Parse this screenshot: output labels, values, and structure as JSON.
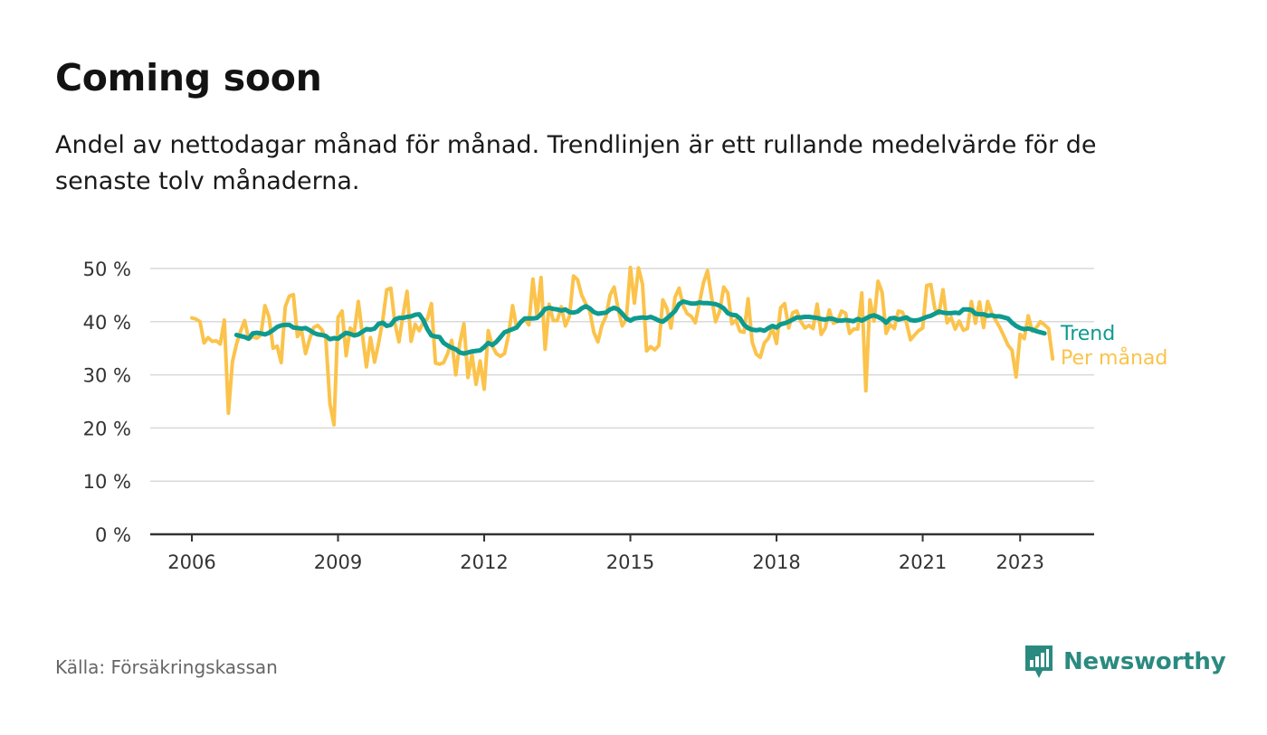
{
  "header": {
    "title": "Coming soon",
    "subtitle": "Andel av nettodagar månad för månad. Trendlinjen är ett rullande medelvärde för de senaste tolv månaderna."
  },
  "footer": {
    "source": "Källa: Försäkringskassan",
    "brand": "Newsworthy",
    "brand_icon": "bar-chart-speech-bubble-icon"
  },
  "colors": {
    "trend": "#0e9a8f",
    "monthly": "#fbc34b",
    "grid": "#d9d9d9",
    "axis": "#333333",
    "brand": "#2b8a80"
  },
  "chart_data": {
    "type": "line",
    "x_start": "2006-01",
    "x_step": "month",
    "ylim": [
      0,
      50
    ],
    "y_ticks": [
      0,
      10,
      20,
      30,
      40,
      50
    ],
    "y_tick_labels": [
      "0 %",
      "10 %",
      "20 %",
      "30 %",
      "40 %",
      "50 %"
    ],
    "x_ticks": [
      2006,
      2009,
      2012,
      2015,
      2018,
      2021,
      2023
    ],
    "x_tick_labels": [
      "2006",
      "2009",
      "2012",
      "2015",
      "2018",
      "2021",
      "2023"
    ],
    "grid": true,
    "legend": "inline-right",
    "series": [
      {
        "name": "Trend",
        "start": "2006-12",
        "values": [
          37.5,
          37.3,
          37.1,
          36.8,
          37.8,
          37.9,
          37.8,
          37.6,
          37.9,
          38.4,
          39.0,
          39.3,
          39.4,
          39.4,
          38.9,
          38.8,
          38.7,
          38.8,
          38.4,
          37.9,
          37.6,
          37.5,
          37.3,
          36.7,
          36.9,
          36.8,
          37.4,
          37.9,
          37.7,
          37.4,
          37.6,
          38.1,
          38.6,
          38.5,
          38.7,
          39.6,
          39.8,
          39.2,
          39.4,
          40.4,
          40.7,
          40.7,
          40.9,
          41.0,
          41.3,
          41.4,
          40.3,
          38.6,
          37.4,
          37.2,
          37.1,
          36.0,
          35.5,
          35.1,
          34.8,
          34.2,
          34.0,
          34.2,
          34.4,
          34.5,
          34.6,
          35.2,
          36.0,
          35.6,
          36.2,
          37.1,
          38.0,
          38.3,
          38.6,
          38.9,
          39.9,
          40.6,
          40.6,
          40.6,
          40.7,
          41.4,
          42.4,
          42.6,
          42.4,
          42.3,
          42.1,
          42.3,
          41.8,
          41.7,
          41.9,
          42.5,
          42.9,
          42.5,
          41.8,
          41.5,
          41.6,
          41.7,
          42.3,
          42.6,
          42.3,
          41.5,
          40.6,
          40.2,
          40.6,
          40.7,
          40.8,
          40.7,
          40.9,
          40.6,
          40.2,
          40.0,
          40.6,
          41.3,
          42.0,
          43.3,
          43.8,
          43.6,
          43.4,
          43.4,
          43.6,
          43.5,
          43.5,
          43.4,
          43.3,
          43.0,
          42.5,
          41.6,
          41.3,
          41.2,
          40.6,
          39.4,
          38.8,
          38.5,
          38.4,
          38.5,
          38.3,
          38.8,
          39.2,
          38.9,
          39.5,
          39.7,
          40.0,
          40.4,
          40.8,
          40.8,
          40.9,
          40.9,
          40.8,
          40.7,
          40.5,
          40.4,
          40.6,
          40.5,
          40.2,
          40.2,
          40.3,
          40.2,
          40.1,
          40.5,
          40.2,
          40.6,
          41.0,
          41.2,
          40.9,
          40.5,
          39.8,
          40.6,
          40.7,
          40.4,
          40.6,
          40.8,
          40.3,
          40.2,
          40.3,
          40.6,
          40.9,
          41.1,
          41.5,
          41.9,
          41.7,
          41.6,
          41.6,
          41.7,
          41.6,
          42.3,
          42.3,
          42.2,
          41.5,
          41.4,
          41.4,
          41.1,
          41.2,
          41.0,
          41.0,
          40.8,
          40.6,
          39.8,
          39.2,
          38.8,
          38.6,
          38.7,
          38.5,
          38.2,
          38.0,
          37.8
        ]
      },
      {
        "name": "Per månad",
        "start": "2006-01",
        "values": [
          40.7,
          40.5,
          40.0,
          36.0,
          37.0,
          36.3,
          36.4,
          35.8,
          40.3,
          22.8,
          32.5,
          35.8,
          38.2,
          40.2,
          36.7,
          37.2,
          36.9,
          37.5,
          43.0,
          40.9,
          35.0,
          35.4,
          32.3,
          42.8,
          44.8,
          45.1,
          37.2,
          38.4,
          34.0,
          36.7,
          38.9,
          39.3,
          38.5,
          36.8,
          24.6,
          20.6,
          40.8,
          42.0,
          33.6,
          38.8,
          38.0,
          43.8,
          37.6,
          31.5,
          37.0,
          32.4,
          36.0,
          40.2,
          46.0,
          46.3,
          39.8,
          36.2,
          41.2,
          45.7,
          36.3,
          39.5,
          38.3,
          39.9,
          40.5,
          43.4,
          32.2,
          32.0,
          32.3,
          34.0,
          36.5,
          30.0,
          36.0,
          39.6,
          29.5,
          33.8,
          28.2,
          32.6,
          27.3,
          38.3,
          35.4,
          34.0,
          33.5,
          34.0,
          37.5,
          43.0,
          38.8,
          40.0,
          40.5,
          39.4,
          48.0,
          41.0,
          48.3,
          34.8,
          43.3,
          40.2,
          40.2,
          42.8,
          39.2,
          41.0,
          48.6,
          47.9,
          45.0,
          43.4,
          42.0,
          38.0,
          36.2,
          39.3,
          41.0,
          45.0,
          46.5,
          42.3,
          39.2,
          40.5,
          50.2,
          43.5,
          50.1,
          47.0,
          34.5,
          35.3,
          34.7,
          35.5,
          44.1,
          42.5,
          38.8,
          44.6,
          46.3,
          43.0,
          41.5,
          41.0,
          39.8,
          43.5,
          47.3,
          49.6,
          44.6,
          40.0,
          42.0,
          46.5,
          45.4,
          39.6,
          40.3,
          38.2,
          38.0,
          44.3,
          36.2,
          33.9,
          33.3,
          36.0,
          36.9,
          38.8,
          35.9,
          42.6,
          43.4,
          38.8,
          41.7,
          42.0,
          40.0,
          38.8,
          39.3,
          38.7,
          43.3,
          37.6,
          38.8,
          42.2,
          39.7,
          40.0,
          42.0,
          41.6,
          37.8,
          38.6,
          38.6,
          45.4,
          27.0,
          44.1,
          40.1,
          47.6,
          45.5,
          37.8,
          39.5,
          38.7,
          42.0,
          41.8,
          39.8,
          36.6,
          37.5,
          38.3,
          38.8,
          46.8,
          47.0,
          42.4,
          41.5,
          46.0,
          39.8,
          40.8,
          38.6,
          40.1,
          38.4,
          38.7,
          43.8,
          39.7,
          43.7,
          38.9,
          43.8,
          41.6,
          40.2,
          38.9,
          37.3,
          35.6,
          34.6,
          29.6,
          37.6,
          36.8,
          41.1,
          38.2,
          38.9,
          40.0,
          39.4,
          38.7,
          33.0
        ]
      }
    ]
  }
}
